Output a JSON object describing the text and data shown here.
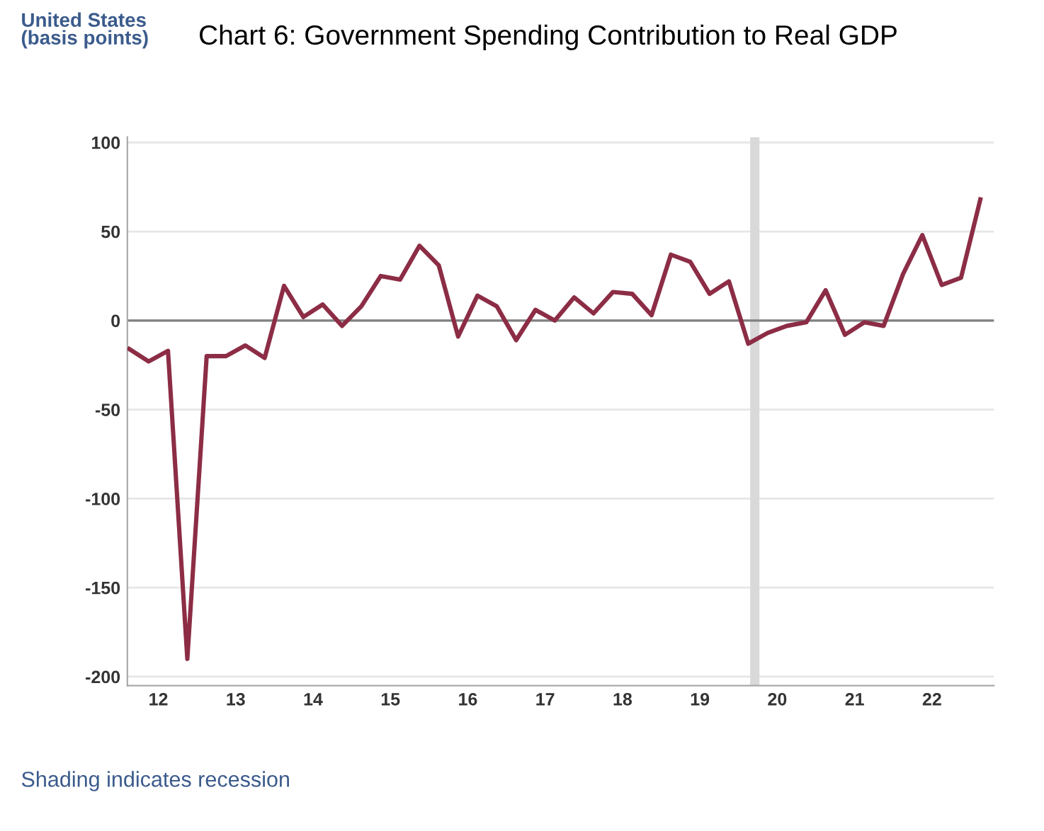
{
  "chart_data": {
    "type": "line",
    "title": "Chart 6: Government Spending Contribution to Real GDP",
    "ylabel": "United States\n(basis points)",
    "annotations": [
      "Shading indicates recession"
    ],
    "x": [
      12.125,
      12.375,
      12.625,
      12.875,
      13.125,
      13.375,
      13.625,
      13.875,
      14.125,
      14.375,
      14.625,
      14.875,
      15.125,
      15.375,
      15.625,
      15.875,
      16.125,
      16.375,
      16.625,
      16.875,
      17.125,
      17.375,
      17.625,
      17.875,
      18.125,
      18.375,
      18.625,
      18.875,
      19.125,
      19.375,
      19.625,
      19.875,
      20.125,
      20.375,
      20.625,
      20.875,
      21.125,
      21.375,
      21.625,
      21.875,
      22.125,
      22.375,
      22.625,
      22.875,
      23.125
    ],
    "series": [
      {
        "color": "#8c2d45",
        "values": [
          -16,
          -23,
          -17,
          -190,
          -20,
          -20,
          -14,
          -21,
          19.5,
          2,
          9,
          -3,
          8,
          25,
          23,
          42,
          31,
          -9,
          14,
          8,
          -11,
          6,
          0,
          13,
          4,
          16,
          15,
          3,
          37,
          33,
          15,
          22,
          -13,
          -7,
          -3,
          -1,
          17,
          -8,
          -1,
          -3,
          26,
          48,
          20,
          24,
          68
        ]
      }
    ],
    "xlim": [
      12.1,
      23.3
    ],
    "xticks": [
      {
        "value": 12.5,
        "label": "12"
      },
      {
        "value": 13.5,
        "label": "13"
      },
      {
        "value": 14.5,
        "label": "14"
      },
      {
        "value": 15.5,
        "label": "15"
      },
      {
        "value": 16.5,
        "label": "16"
      },
      {
        "value": 17.5,
        "label": "17"
      },
      {
        "value": 18.5,
        "label": "18"
      },
      {
        "value": 19.5,
        "label": "19"
      },
      {
        "value": 20.5,
        "label": "20"
      },
      {
        "value": 21.5,
        "label": "21"
      },
      {
        "value": 22.5,
        "label": "22"
      }
    ],
    "ylim": [
      -205,
      103
    ],
    "yticks": [
      -200,
      -150,
      -100,
      -50,
      0,
      50,
      100
    ],
    "ref_lines": [
      {
        "axis": "y",
        "value": 0,
        "label": null,
        "color": "#808080"
      }
    ],
    "bands": [
      {
        "axis": "x",
        "from": 20.15,
        "to": 20.27,
        "label": null,
        "color": "#d9d9d9"
      }
    ],
    "grid": "y",
    "legend": false,
    "marker": "none",
    "line_style": "solid"
  }
}
